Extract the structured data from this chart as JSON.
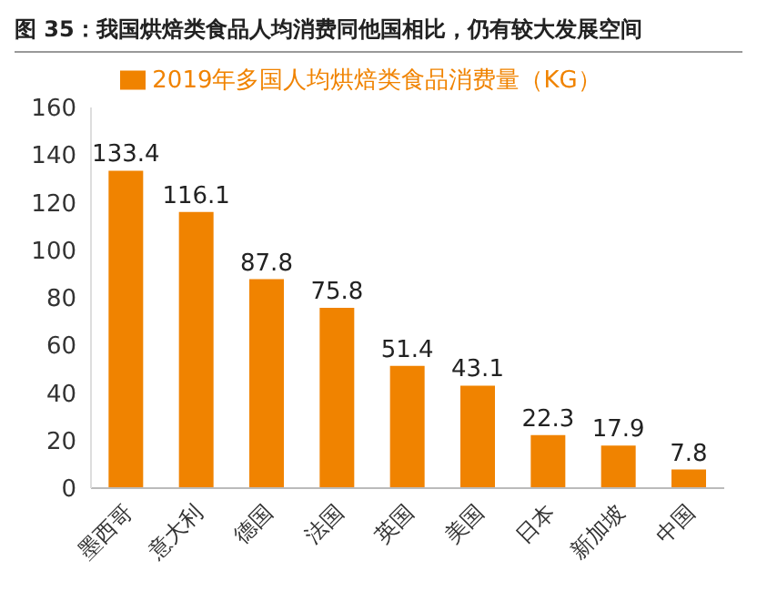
{
  "chart_data": {
    "type": "bar",
    "title": "图 35：我国烘焙类食品人均消费同他国相比，仍有较大发展空间",
    "categories": [
      "墨西哥",
      "意大利",
      "德国",
      "法国",
      "英国",
      "美国",
      "日本",
      "新加坡",
      "中国"
    ],
    "series": [
      {
        "name": "2019年多国人均烘焙类食品消费量（KG）",
        "color": "#f08300",
        "values": [
          133.4,
          116.1,
          87.8,
          75.8,
          51.4,
          43.1,
          22.3,
          17.9,
          7.8
        ]
      }
    ],
    "ylim": [
      0,
      160
    ],
    "yticks": [
      0,
      20,
      40,
      60,
      80,
      100,
      120,
      140,
      160
    ],
    "grid": false,
    "legend": "top",
    "data_labels": true
  }
}
